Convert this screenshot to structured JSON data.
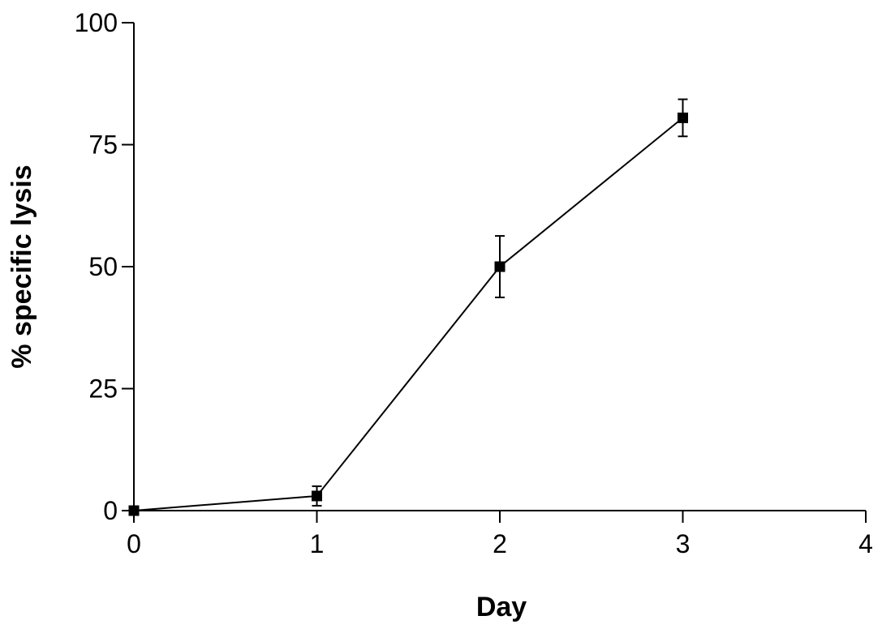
{
  "chart_data": {
    "type": "line",
    "xlabel": "Day",
    "ylabel": "% specific lysis",
    "xlim": [
      0,
      4
    ],
    "ylim": [
      0,
      100
    ],
    "x_ticks": [
      "0",
      "1",
      "2",
      "3",
      "4"
    ],
    "y_ticks": [
      "0",
      "25",
      "50",
      "75",
      "100"
    ],
    "grid": false,
    "legend": "none",
    "series": [
      {
        "marker": "square",
        "color": "#000000",
        "points": [
          {
            "x": 0,
            "y": 0,
            "err": 0
          },
          {
            "x": 1,
            "y": 3,
            "err": 2
          },
          {
            "x": 2,
            "y": 50,
            "err": 6.3
          },
          {
            "x": 3,
            "y": 80.5,
            "err": 3.8
          }
        ]
      }
    ]
  }
}
